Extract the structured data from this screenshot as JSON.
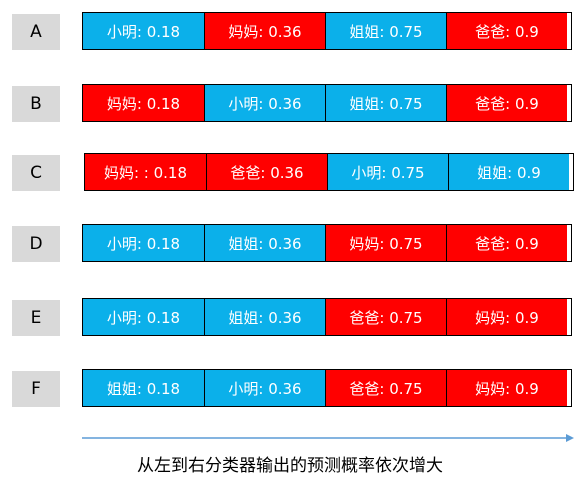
{
  "colors": {
    "blue": "#0bb0ea",
    "red": "#ff0000",
    "label_bg": "#d9d9d9",
    "arrow": "#5b9bd5"
  },
  "rows": [
    {
      "label": "A",
      "cells": [
        {
          "text": "小明: 0.18",
          "color": "blue"
        },
        {
          "text": "妈妈: 0.36",
          "color": "red"
        },
        {
          "text": "姐姐: 0.75",
          "color": "blue"
        },
        {
          "text": "爸爸: 0.9",
          "color": "red"
        }
      ]
    },
    {
      "label": "B",
      "cells": [
        {
          "text": "妈妈: 0.18",
          "color": "red"
        },
        {
          "text": "小明: 0.36",
          "color": "blue"
        },
        {
          "text": "姐姐: 0.75",
          "color": "blue"
        },
        {
          "text": "爸爸: 0.9",
          "color": "red"
        }
      ]
    },
    {
      "label": "C",
      "cells": [
        {
          "text": "妈妈: : 0.18",
          "color": "red"
        },
        {
          "text": "爸爸: 0.36",
          "color": "red"
        },
        {
          "text": "小明: 0.75",
          "color": "blue"
        },
        {
          "text": "姐姐: 0.9",
          "color": "blue"
        }
      ]
    },
    {
      "label": "D",
      "cells": [
        {
          "text": "小明: 0.18",
          "color": "blue"
        },
        {
          "text": "姐姐: 0.36",
          "color": "blue"
        },
        {
          "text": "妈妈: 0.75",
          "color": "red"
        },
        {
          "text": "爸爸: 0.9",
          "color": "red"
        }
      ]
    },
    {
      "label": "E",
      "cells": [
        {
          "text": "小明:  0.18",
          "color": "blue"
        },
        {
          "text": "姐姐: 0.36",
          "color": "blue"
        },
        {
          "text": "爸爸: 0.75",
          "color": "red"
        },
        {
          "text": "妈妈: 0.9",
          "color": "red"
        }
      ]
    },
    {
      "label": "F",
      "cells": [
        {
          "text": "姐姐: 0.18",
          "color": "blue"
        },
        {
          "text": "小明: 0.36",
          "color": "blue"
        },
        {
          "text": "爸爸: 0.75",
          "color": "red"
        },
        {
          "text": "妈妈: 0.9",
          "color": "red"
        }
      ]
    }
  ],
  "caption": "从左到右分类器输出的预测概率依次增大"
}
